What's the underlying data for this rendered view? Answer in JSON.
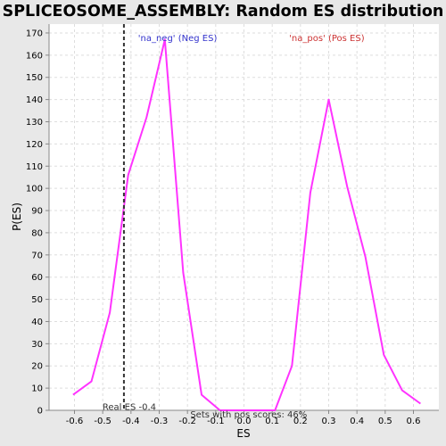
{
  "chart_data": {
    "type": "line",
    "title": "SPLICEOSOME_ASSEMBLY: Random ES distribution",
    "xlabel": "ES",
    "ylabel": "P(ES)",
    "xlim": [
      -0.69,
      0.69
    ],
    "ylim": [
      0,
      174
    ],
    "xticks": [
      -0.6,
      -0.5,
      -0.4,
      -0.3,
      -0.2,
      -0.1,
      0.0,
      0.1,
      0.2,
      0.3,
      0.4,
      0.5,
      0.6
    ],
    "yticks": [
      0,
      10,
      20,
      30,
      40,
      50,
      60,
      70,
      80,
      90,
      100,
      110,
      120,
      130,
      140,
      150,
      160,
      170
    ],
    "grid": true,
    "series": [
      {
        "color": "#ff33ff",
        "x": [
          -0.605,
          -0.54,
          -0.475,
          -0.41,
          -0.345,
          -0.28,
          -0.215,
          -0.15,
          -0.085,
          -0.02,
          0.045,
          0.11,
          0.17,
          0.235,
          0.3,
          0.365,
          0.43,
          0.495,
          0.56,
          0.625
        ],
        "y": [
          7,
          13,
          44,
          106,
          132,
          167,
          62,
          7,
          0,
          0,
          0,
          0,
          20,
          98,
          140,
          101,
          69,
          25,
          9,
          3
        ]
      }
    ],
    "real_es": {
      "x": -0.425,
      "label": "Real ES -0.4",
      "color": "#333333"
    },
    "annotations": [
      {
        "id": "neg",
        "text": "'na_neg' (Neg ES)",
        "color": "#3333cc",
        "x": -0.375,
        "y": 170
      },
      {
        "id": "pos",
        "text": "'na_pos' (Pos ES)",
        "color": "#cc3333",
        "x": 0.16,
        "y": 170
      },
      {
        "id": "sets",
        "text": "Sets with pos scores: 46%",
        "color": "#333333",
        "x": -0.19,
        "y": 0.5
      }
    ]
  }
}
